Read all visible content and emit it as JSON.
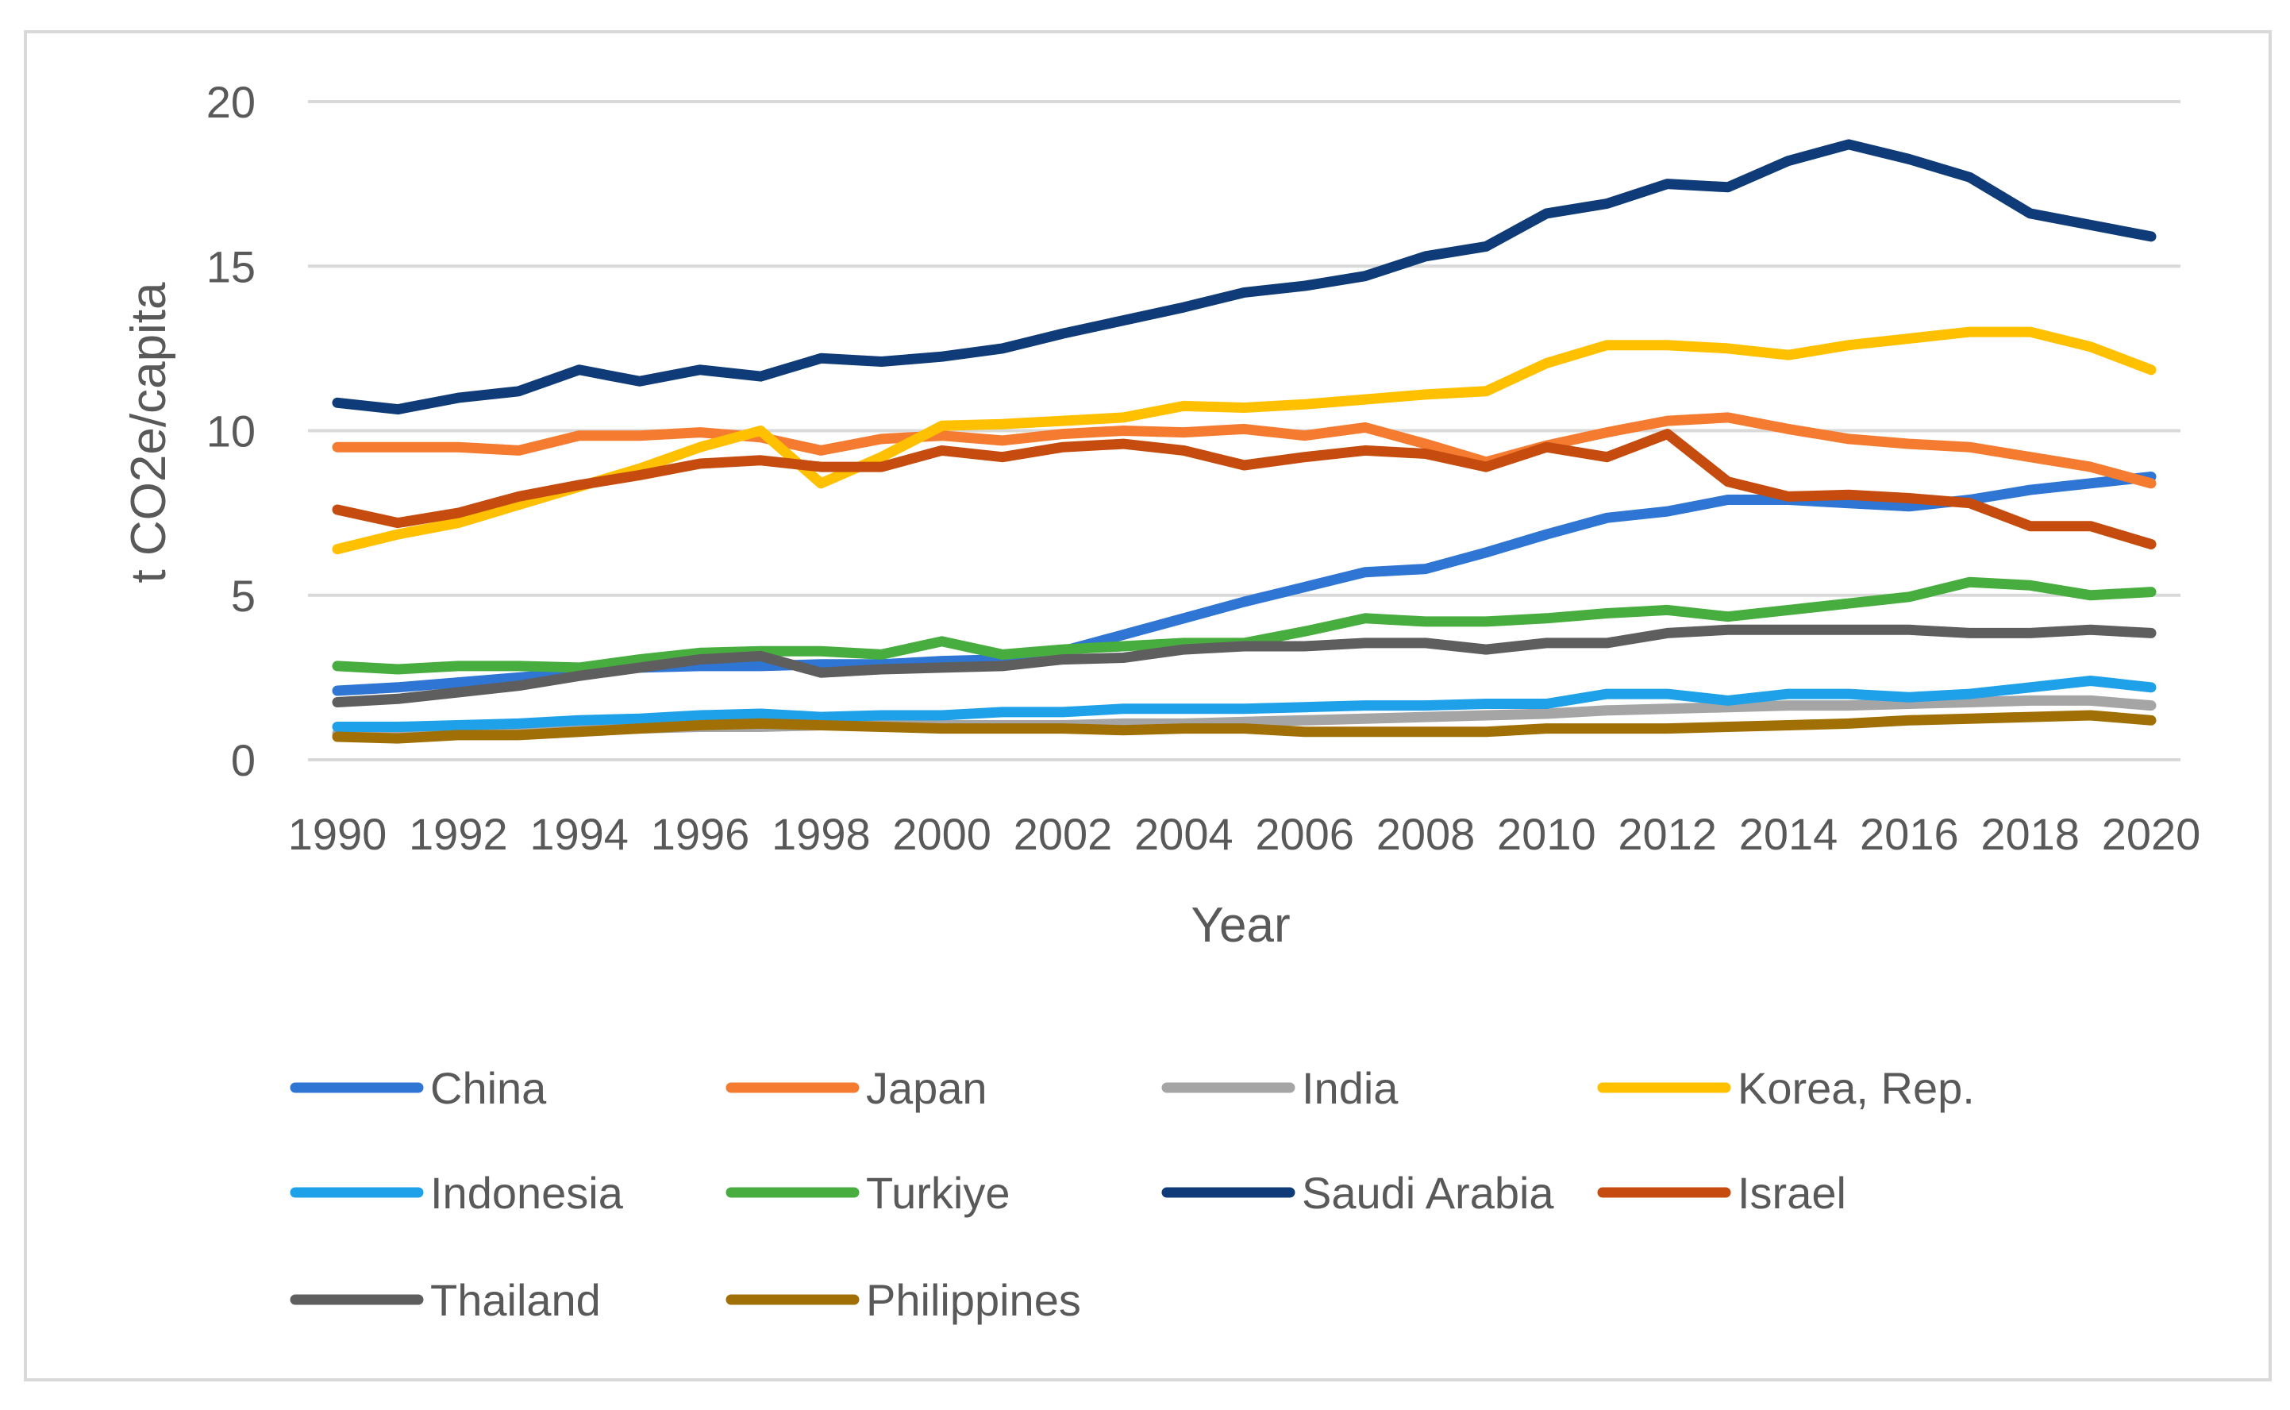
{
  "chart_data": {
    "type": "line",
    "title": "",
    "xlabel": "Year",
    "ylabel": "t CO2e/capita",
    "ylim": [
      0,
      20
    ],
    "yticks": [
      "0",
      "5",
      "10",
      "15",
      "20"
    ],
    "xticks": [
      "1990",
      "1992",
      "1994",
      "1996",
      "1998",
      "2000",
      "2002",
      "2004",
      "2006",
      "2008",
      "2010",
      "2012",
      "2014",
      "2016",
      "2018",
      "2020"
    ],
    "grid": "horizontal",
    "legend_position": "bottom",
    "x": [
      1990,
      1991,
      1992,
      1993,
      1994,
      1995,
      1996,
      1997,
      1998,
      1999,
      2000,
      2001,
      2002,
      2003,
      2004,
      2005,
      2006,
      2007,
      2008,
      2009,
      2010,
      2011,
      2012,
      2013,
      2014,
      2015,
      2016,
      2017,
      2018,
      2019,
      2020
    ],
    "series": [
      {
        "name": "China",
        "color": "#2e75d4",
        "values": [
          2.1,
          2.2,
          2.35,
          2.5,
          2.65,
          2.8,
          2.85,
          2.85,
          2.9,
          2.9,
          3.0,
          3.05,
          3.3,
          3.8,
          4.3,
          4.8,
          5.25,
          5.7,
          5.8,
          6.3,
          6.85,
          7.35,
          7.55,
          7.9,
          7.9,
          7.8,
          7.7,
          7.9,
          8.2,
          8.4,
          8.6
        ]
      },
      {
        "name": "Japan",
        "color": "#f47b2f",
        "values": [
          9.5,
          9.5,
          9.5,
          9.4,
          9.85,
          9.85,
          9.95,
          9.8,
          9.4,
          9.75,
          9.85,
          9.7,
          9.9,
          10.0,
          9.95,
          10.05,
          9.85,
          10.1,
          9.6,
          9.05,
          9.55,
          9.95,
          10.3,
          10.4,
          10.05,
          9.75,
          9.6,
          9.5,
          9.2,
          8.9,
          8.4
        ]
      },
      {
        "name": "India",
        "color": "#a5a5a5",
        "values": [
          0.8,
          0.8,
          0.85,
          0.85,
          0.9,
          0.95,
          1.0,
          1.0,
          1.05,
          1.05,
          1.05,
          1.05,
          1.05,
          1.1,
          1.1,
          1.15,
          1.2,
          1.25,
          1.3,
          1.35,
          1.4,
          1.5,
          1.55,
          1.6,
          1.65,
          1.65,
          1.7,
          1.75,
          1.8,
          1.8,
          1.65
        ]
      },
      {
        "name": "Korea, Rep.",
        "color": "#ffc000",
        "values": [
          6.4,
          6.85,
          7.2,
          7.75,
          8.3,
          8.85,
          9.5,
          10.0,
          8.4,
          9.2,
          10.15,
          10.2,
          10.3,
          10.4,
          10.75,
          10.7,
          10.8,
          10.95,
          11.1,
          11.2,
          12.05,
          12.6,
          12.6,
          12.5,
          12.3,
          12.6,
          12.8,
          13.0,
          13.0,
          12.55,
          11.85
        ]
      },
      {
        "name": "Indonesia",
        "color": "#1ea1e8",
        "values": [
          1.0,
          1.0,
          1.05,
          1.1,
          1.2,
          1.25,
          1.35,
          1.4,
          1.3,
          1.35,
          1.35,
          1.45,
          1.45,
          1.55,
          1.55,
          1.55,
          1.6,
          1.65,
          1.65,
          1.7,
          1.7,
          2.0,
          2.0,
          1.8,
          2.0,
          2.0,
          1.9,
          2.0,
          2.2,
          2.4,
          2.2
        ]
      },
      {
        "name": "Turkiye",
        "color": "#47ad3e",
        "values": [
          2.85,
          2.75,
          2.85,
          2.85,
          2.8,
          3.05,
          3.25,
          3.3,
          3.3,
          3.2,
          3.6,
          3.2,
          3.35,
          3.45,
          3.55,
          3.55,
          3.9,
          4.3,
          4.2,
          4.2,
          4.3,
          4.45,
          4.55,
          4.35,
          4.55,
          4.75,
          4.95,
          5.4,
          5.3,
          5.0,
          5.1
        ]
      },
      {
        "name": "Saudi Arabia",
        "color": "#0f3c78",
        "values": [
          10.85,
          10.65,
          11.0,
          11.2,
          11.85,
          11.5,
          11.85,
          11.65,
          12.2,
          12.1,
          12.25,
          12.5,
          12.95,
          13.35,
          13.75,
          14.2,
          14.4,
          14.7,
          15.3,
          15.6,
          16.6,
          16.9,
          17.5,
          17.4,
          18.2,
          18.7,
          18.25,
          17.7,
          16.6,
          16.25,
          15.9
        ]
      },
      {
        "name": "Israel",
        "color": "#c54c0e",
        "values": [
          7.6,
          7.2,
          7.5,
          8.0,
          8.35,
          8.65,
          9.0,
          9.1,
          8.9,
          8.9,
          9.4,
          9.2,
          9.5,
          9.6,
          9.4,
          8.95,
          9.2,
          9.4,
          9.3,
          8.9,
          9.5,
          9.2,
          9.9,
          8.45,
          8.0,
          8.05,
          7.95,
          7.8,
          7.1,
          7.1,
          6.55
        ]
      },
      {
        "name": "Thailand",
        "color": "#5e5e5e",
        "values": [
          1.75,
          1.85,
          2.05,
          2.25,
          2.55,
          2.8,
          3.05,
          3.15,
          2.65,
          2.75,
          2.8,
          2.85,
          3.05,
          3.1,
          3.35,
          3.45,
          3.45,
          3.55,
          3.55,
          3.35,
          3.55,
          3.55,
          3.85,
          3.95,
          3.95,
          3.95,
          3.95,
          3.85,
          3.85,
          3.95,
          3.85
        ]
      },
      {
        "name": "Philippines",
        "color": "#a07006",
        "values": [
          0.7,
          0.65,
          0.75,
          0.75,
          0.85,
          0.95,
          1.05,
          1.1,
          1.05,
          1.0,
          0.95,
          0.95,
          0.95,
          0.9,
          0.95,
          0.95,
          0.85,
          0.85,
          0.85,
          0.85,
          0.95,
          0.95,
          0.95,
          1.0,
          1.05,
          1.1,
          1.2,
          1.25,
          1.3,
          1.35,
          1.2
        ]
      }
    ]
  }
}
